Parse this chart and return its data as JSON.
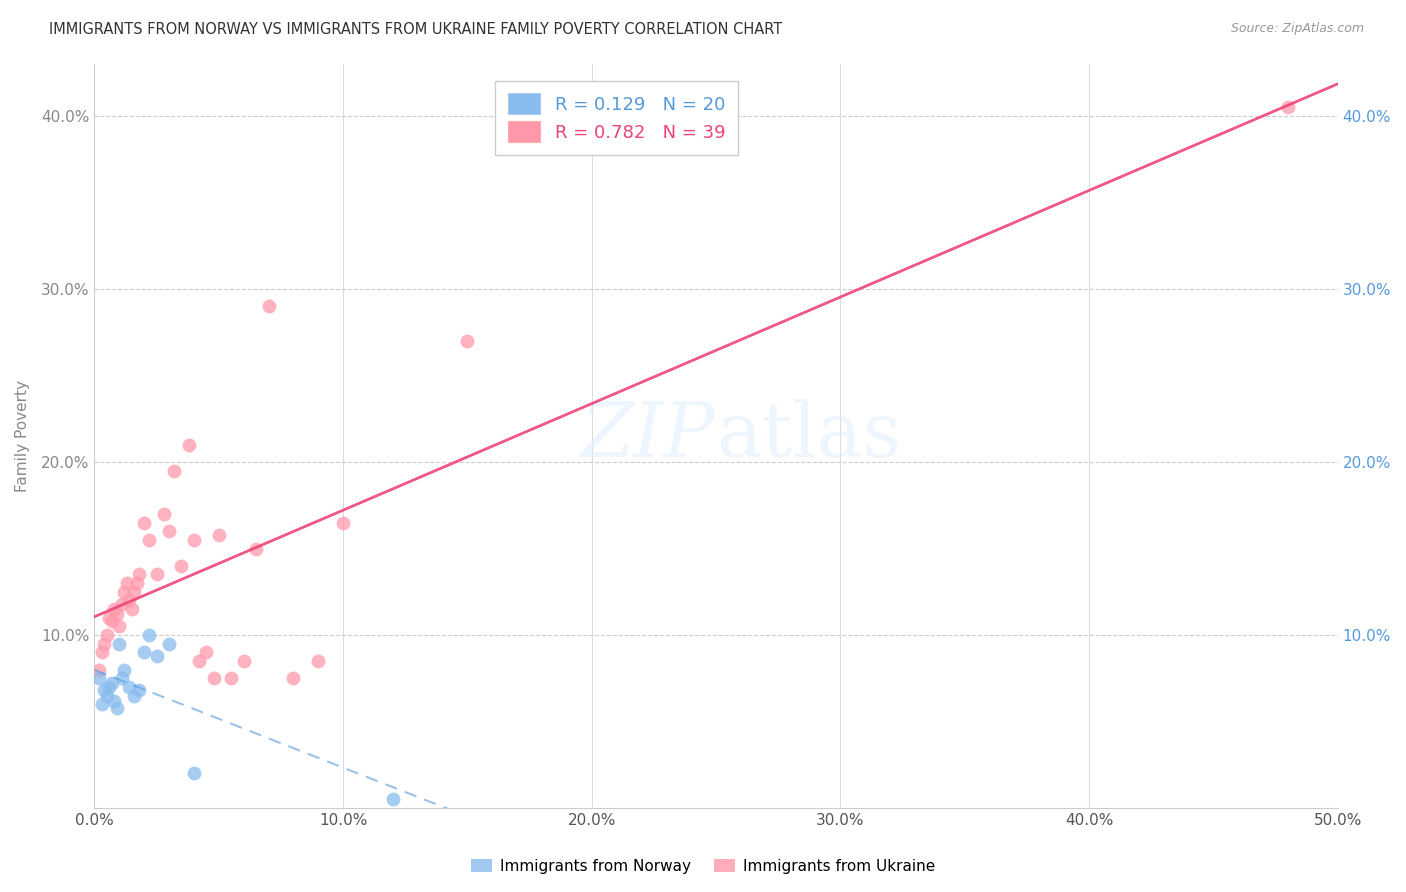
{
  "title": "IMMIGRANTS FROM NORWAY VS IMMIGRANTS FROM UKRAINE FAMILY POVERTY CORRELATION CHART",
  "source": "Source: ZipAtlas.com",
  "ylabel": "Family Poverty",
  "xlim": [
    0.0,
    0.5
  ],
  "ylim": [
    0.0,
    0.43
  ],
  "norway_R": 0.129,
  "norway_N": 20,
  "ukraine_R": 0.782,
  "ukraine_N": 39,
  "norway_color": "#88BBEE",
  "ukraine_color": "#FF99AA",
  "norway_line_color": "#5599DD",
  "ukraine_line_color": "#EE4477",
  "norway_x": [
    0.002,
    0.003,
    0.004,
    0.005,
    0.006,
    0.007,
    0.008,
    0.009,
    0.01,
    0.011,
    0.012,
    0.014,
    0.016,
    0.018,
    0.02,
    0.022,
    0.025,
    0.03,
    0.04,
    0.12
  ],
  "norway_y": [
    0.075,
    0.06,
    0.068,
    0.065,
    0.07,
    0.072,
    0.062,
    0.058,
    0.095,
    0.075,
    0.08,
    0.07,
    0.065,
    0.068,
    0.09,
    0.1,
    0.088,
    0.095,
    0.02,
    0.005
  ],
  "ukraine_x": [
    0.002,
    0.003,
    0.004,
    0.005,
    0.006,
    0.007,
    0.008,
    0.009,
    0.01,
    0.011,
    0.012,
    0.013,
    0.014,
    0.015,
    0.016,
    0.017,
    0.018,
    0.02,
    0.022,
    0.025,
    0.028,
    0.03,
    0.032,
    0.035,
    0.038,
    0.04,
    0.042,
    0.045,
    0.048,
    0.05,
    0.055,
    0.06,
    0.065,
    0.07,
    0.08,
    0.09,
    0.1,
    0.15,
    0.48
  ],
  "ukraine_y": [
    0.08,
    0.09,
    0.095,
    0.1,
    0.11,
    0.108,
    0.115,
    0.112,
    0.105,
    0.118,
    0.125,
    0.13,
    0.12,
    0.115,
    0.125,
    0.13,
    0.135,
    0.165,
    0.155,
    0.135,
    0.17,
    0.16,
    0.195,
    0.14,
    0.21,
    0.155,
    0.085,
    0.09,
    0.075,
    0.158,
    0.075,
    0.085,
    0.15,
    0.29,
    0.075,
    0.085,
    0.165,
    0.27,
    0.405
  ],
  "xtick_vals": [
    0.0,
    0.1,
    0.2,
    0.3,
    0.4,
    0.5
  ],
  "xtick_labels": [
    "0.0%",
    "10.0%",
    "20.0%",
    "30.0%",
    "40.0%",
    "50.0%"
  ],
  "ytick_vals": [
    0.0,
    0.1,
    0.2,
    0.3,
    0.4
  ],
  "ytick_labels": [
    "",
    "10.0%",
    "20.0%",
    "30.0%",
    "40.0%"
  ],
  "ytick_right_vals": [
    0.1,
    0.2,
    0.3,
    0.4
  ],
  "ytick_right_labels": [
    "10.0%",
    "20.0%",
    "30.0%",
    "40.0%"
  ],
  "grid_color": "#CCCCCC",
  "background_color": "#FFFFFF",
  "legend_text_norway": "R = 0.129   N = 20",
  "legend_text_ukraine": "R = 0.782   N = 39",
  "bottom_legend_norway": "Immigrants from Norway",
  "bottom_legend_ukraine": "Immigrants from Ukraine"
}
